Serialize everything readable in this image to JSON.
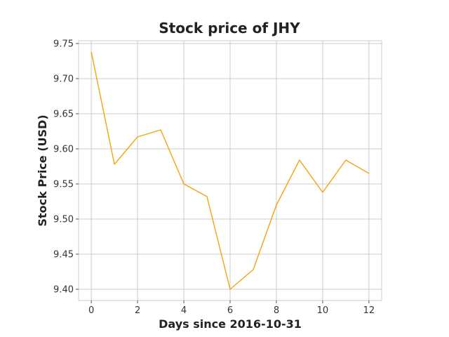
{
  "chart_data": {
    "type": "line",
    "title": "Stock price of JHY",
    "xlabel": "Days since 2016-10-31",
    "ylabel": "Stock Price (USD)",
    "x": [
      0,
      1,
      2,
      3,
      4,
      5,
      6,
      7,
      8,
      9,
      10,
      11,
      12
    ],
    "series": [
      {
        "name": "",
        "color": "#f5a30f",
        "values": [
          9.738,
          9.578,
          9.617,
          9.627,
          9.55,
          9.532,
          9.4,
          9.428,
          9.52,
          9.584,
          9.538,
          9.584,
          9.565
        ]
      }
    ],
    "xlim": [
      -0.55,
      12.55
    ],
    "ylim": [
      9.384,
      9.754
    ],
    "xticks": [
      0,
      2,
      4,
      6,
      8,
      10,
      12
    ],
    "yticks": [
      9.4,
      9.45,
      9.5,
      9.55,
      9.6,
      9.65,
      9.7,
      9.75
    ],
    "ytick_labels": [
      "9.40",
      "9.45",
      "9.50",
      "9.55",
      "9.60",
      "9.65",
      "9.70",
      "9.75"
    ],
    "grid": true,
    "legend": false
  }
}
